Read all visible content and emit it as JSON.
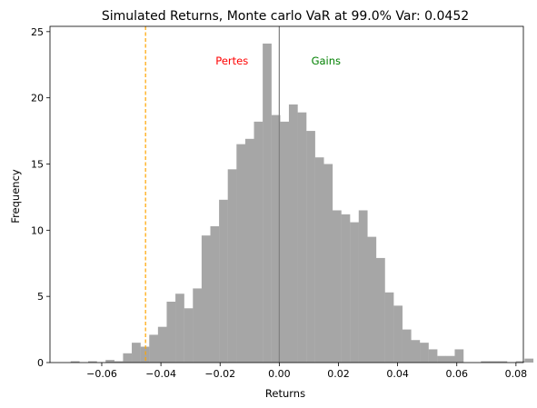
{
  "chart_data": {
    "type": "bar",
    "title": "Simulated Returns, Monte carlo VaR at 99.0% Var: 0.0452",
    "xlabel": "Returns",
    "ylabel": "Frequency",
    "xlim": [
      -0.0775,
      0.0825
    ],
    "ylim": [
      0,
      25.4
    ],
    "bin_width": 0.00295,
    "bin_start": -0.0705,
    "counts": [
      0.1,
      0,
      0.1,
      0,
      0.2,
      0.1,
      0.7,
      1.5,
      1.2,
      2.1,
      2.7,
      4.6,
      5.2,
      4.1,
      5.6,
      9.6,
      10.3,
      12.3,
      14.6,
      16.5,
      16.9,
      18.2,
      24.1,
      18.7,
      18.2,
      19.5,
      18.9,
      17.5,
      15.5,
      15.0,
      11.5,
      11.2,
      10.6,
      11.5,
      9.5,
      7.9,
      5.3,
      4.3,
      2.5,
      1.7,
      1.5,
      1.0,
      0.5,
      0.5,
      1.0,
      0,
      0,
      0.1,
      0.1,
      0.1,
      0,
      0.1,
      0.3
    ],
    "x_ticks": [
      -0.06,
      -0.04,
      -0.02,
      0.0,
      0.02,
      0.04,
      0.06,
      0.08
    ],
    "x_tick_labels": [
      "−0.06",
      "−0.04",
      "−0.02",
      "0.00",
      "0.02",
      "0.04",
      "0.06",
      "0.08"
    ],
    "y_ticks": [
      0,
      5,
      10,
      15,
      20,
      25
    ],
    "y_tick_labels": [
      "0",
      "5",
      "10",
      "15",
      "20",
      "25"
    ],
    "var_line": -0.0452,
    "zero_line": 0.0,
    "annotations": [
      {
        "text": "Pertes",
        "x": -0.016,
        "y": 22.8,
        "color": "#ff0000"
      },
      {
        "text": "Gains",
        "x": 0.0158,
        "y": 22.8,
        "color": "#008000"
      }
    ],
    "colors": {
      "bars": "#a6a6a6",
      "var_line": "#ffa500",
      "zero_line": "#808080"
    },
    "grid": false,
    "legend": "none"
  }
}
